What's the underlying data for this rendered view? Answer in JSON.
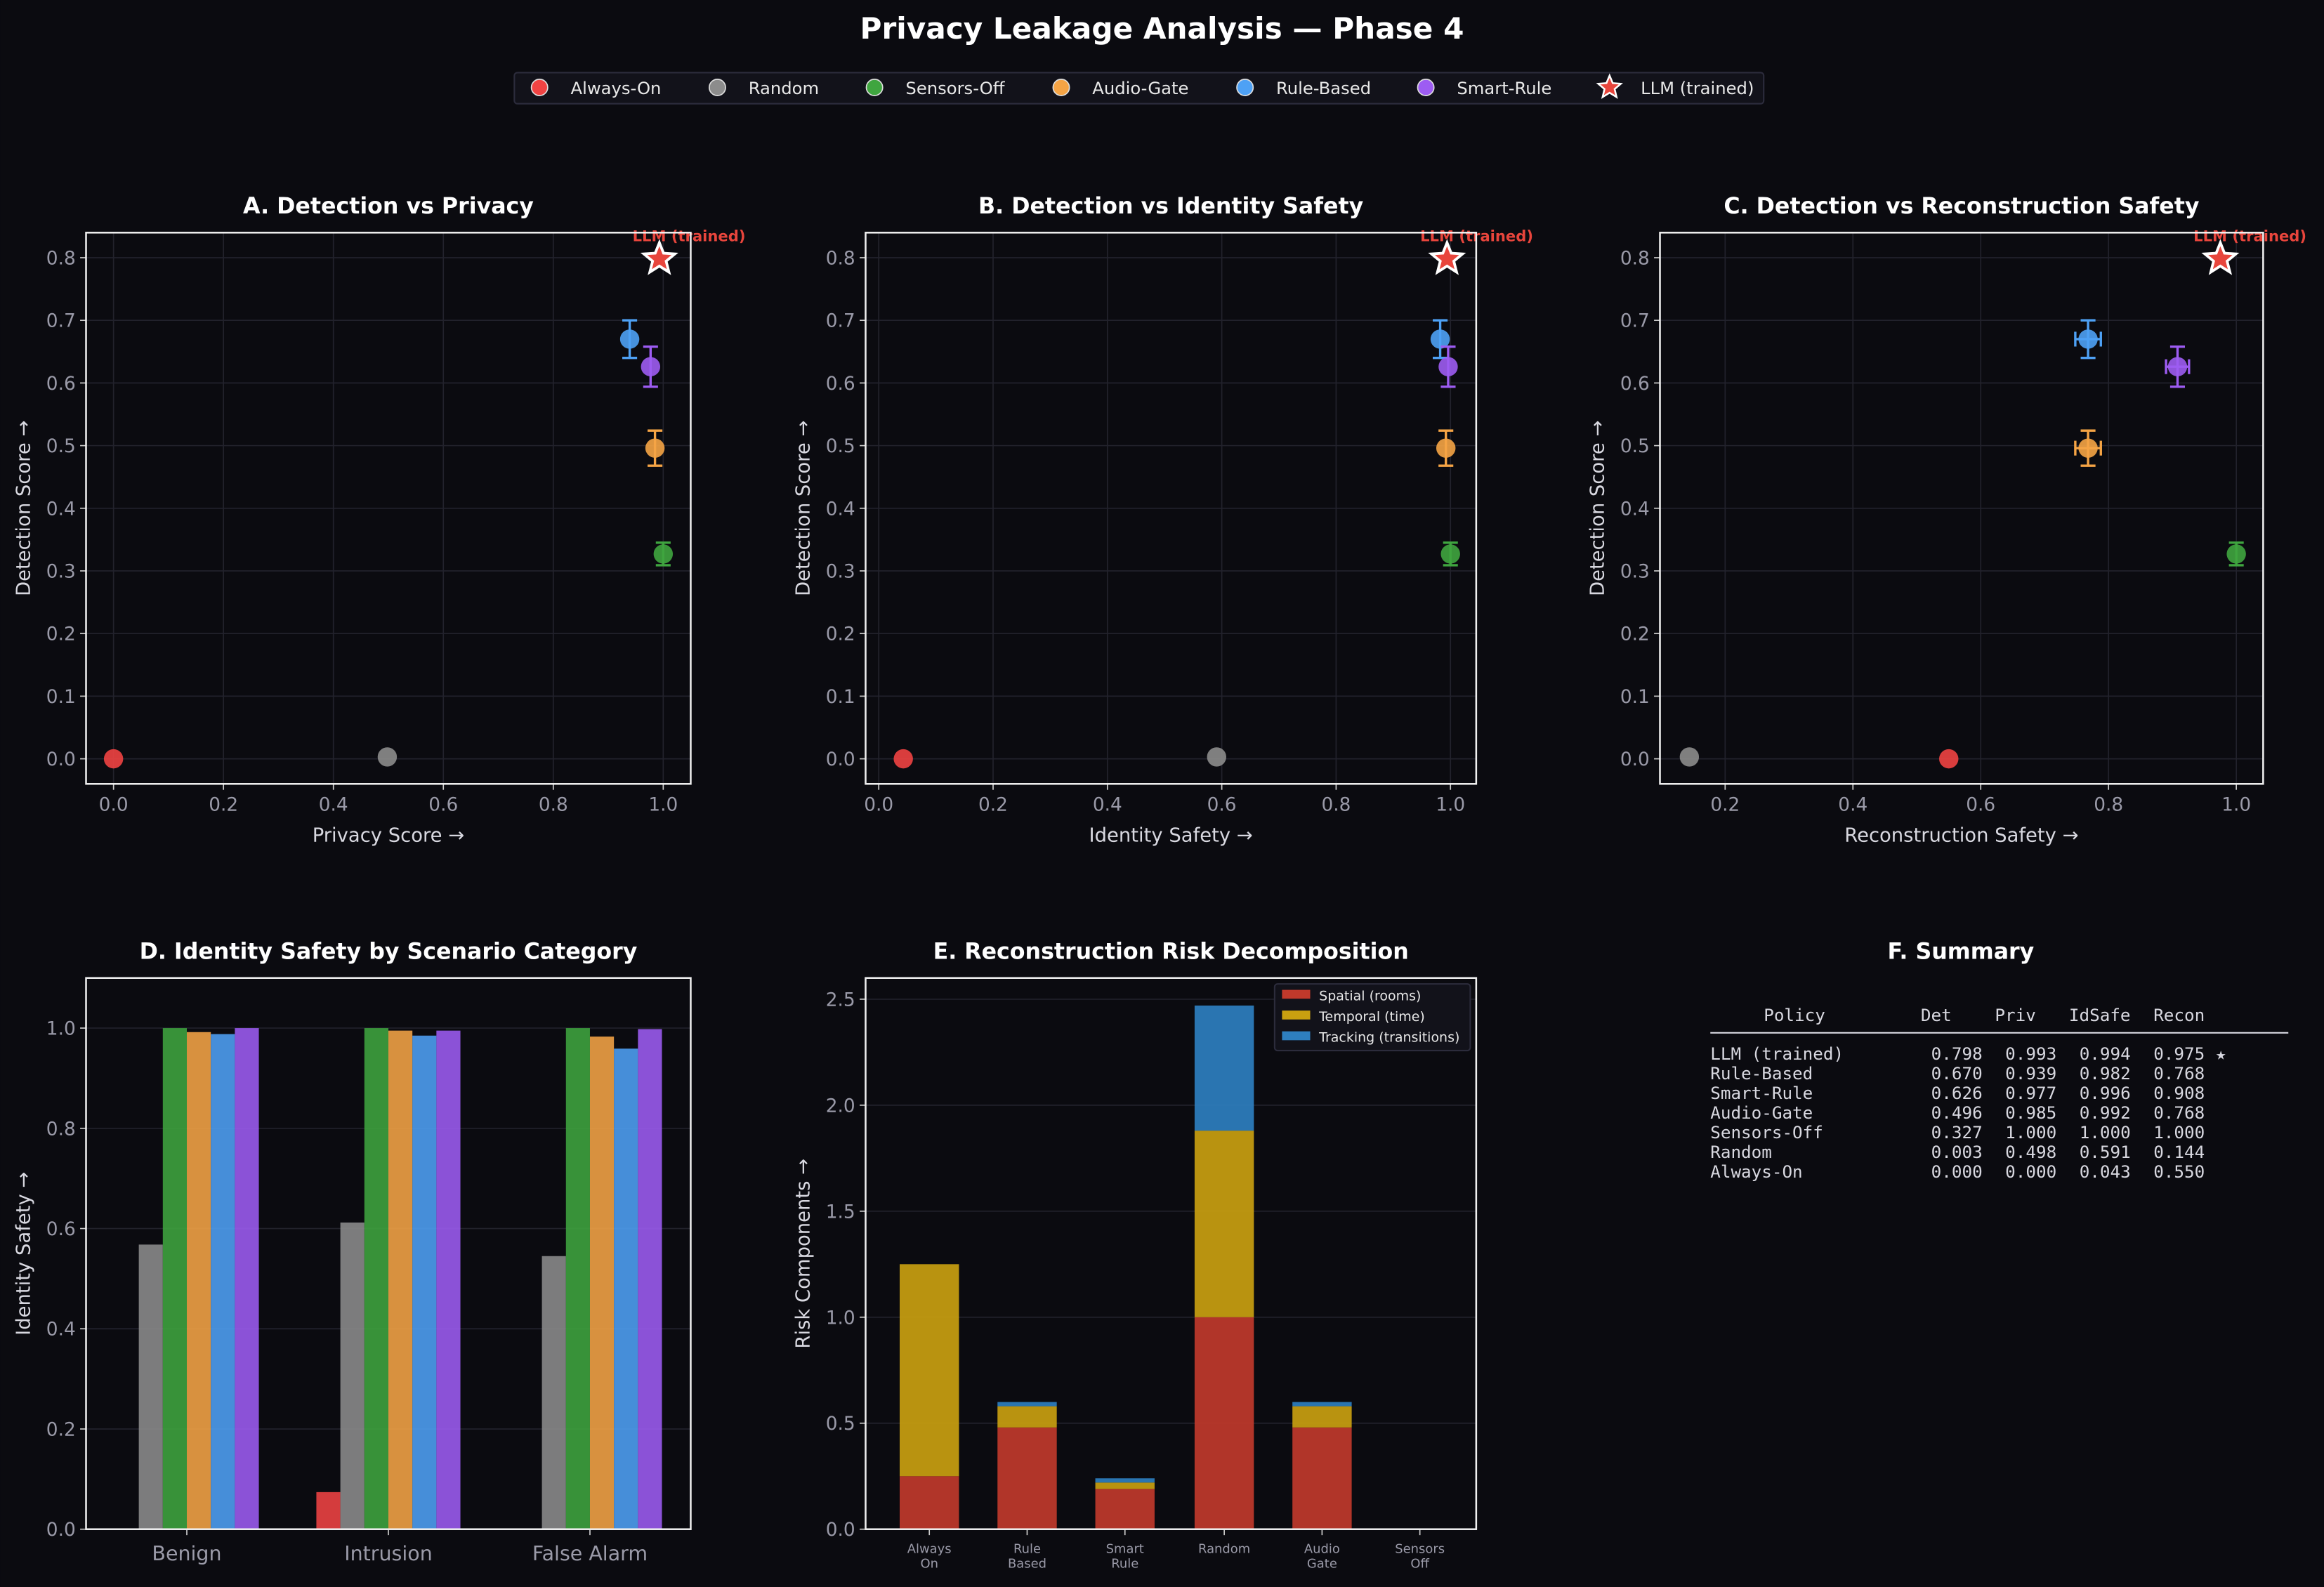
{
  "title": "Privacy Leakage Analysis — Phase 4",
  "legend": [
    {
      "name": "Always-On",
      "color": "#f04343",
      "marker": "circle"
    },
    {
      "name": "Random",
      "color": "#8c8c8c",
      "marker": "circle"
    },
    {
      "name": "Sensors-Off",
      "color": "#3fa53f",
      "marker": "circle"
    },
    {
      "name": "Audio-Gate",
      "color": "#f5a445",
      "marker": "circle"
    },
    {
      "name": "Rule-Based",
      "color": "#4ea1f5",
      "marker": "circle"
    },
    {
      "name": "Smart-Rule",
      "color": "#9d5cf2",
      "marker": "circle"
    },
    {
      "name": "LLM (trained)",
      "color": "#e8453c",
      "marker": "star"
    }
  ],
  "chart_data": [
    {
      "id": "A",
      "type": "scatter",
      "title": "A. Detection vs Privacy",
      "xlabel": "Privacy Score →",
      "ylabel": "Detection Score →",
      "xlim": [
        -0.05,
        1.05
      ],
      "ylim": [
        -0.04,
        0.84
      ],
      "xticks": [
        "0.0",
        "0.2",
        "0.4",
        "0.6",
        "0.8",
        "1.0"
      ],
      "yticks": [
        "0.0",
        "0.1",
        "0.2",
        "0.3",
        "0.4",
        "0.5",
        "0.6",
        "0.7",
        "0.8"
      ],
      "grid": true,
      "annotation": "LLM (trained)",
      "points": [
        {
          "series": "Always-On",
          "x": 0.0,
          "y": 0.0,
          "yerr": 0
        },
        {
          "series": "Random",
          "x": 0.498,
          "y": 0.003,
          "yerr": 0
        },
        {
          "series": "Sensors-Off",
          "x": 1.0,
          "y": 0.327,
          "yerr": 0.018
        },
        {
          "series": "Audio-Gate",
          "x": 0.985,
          "y": 0.496,
          "yerr": 0.028
        },
        {
          "series": "Rule-Based",
          "x": 0.939,
          "y": 0.67,
          "yerr": 0.03
        },
        {
          "series": "Smart-Rule",
          "x": 0.977,
          "y": 0.626,
          "yerr": 0.032
        },
        {
          "series": "LLM (trained)",
          "x": 0.993,
          "y": 0.798,
          "yerr": 0
        }
      ]
    },
    {
      "id": "B",
      "type": "scatter",
      "title": "B. Detection vs Identity Safety",
      "xlabel": "Identity Safety →",
      "ylabel": "Detection Score →",
      "xlim": [
        -0.023,
        1.045
      ],
      "ylim": [
        -0.04,
        0.84
      ],
      "xticks": [
        "0.0",
        "0.2",
        "0.4",
        "0.6",
        "0.8",
        "1.0"
      ],
      "yticks": [
        "0.0",
        "0.1",
        "0.2",
        "0.3",
        "0.4",
        "0.5",
        "0.6",
        "0.7",
        "0.8"
      ],
      "grid": true,
      "annotation": "LLM (trained)",
      "points": [
        {
          "series": "Always-On",
          "x": 0.043,
          "y": 0.0,
          "yerr": 0
        },
        {
          "series": "Random",
          "x": 0.591,
          "y": 0.003,
          "yerr": 0
        },
        {
          "series": "Sensors-Off",
          "x": 1.0,
          "y": 0.327,
          "yerr": 0.018
        },
        {
          "series": "Audio-Gate",
          "x": 0.992,
          "y": 0.496,
          "yerr": 0.028
        },
        {
          "series": "Rule-Based",
          "x": 0.982,
          "y": 0.67,
          "yerr": 0.03
        },
        {
          "series": "Smart-Rule",
          "x": 0.996,
          "y": 0.626,
          "yerr": 0.032
        },
        {
          "series": "LLM (trained)",
          "x": 0.994,
          "y": 0.798,
          "yerr": 0
        }
      ]
    },
    {
      "id": "C",
      "type": "scatter",
      "title": "C. Detection vs Reconstruction Safety",
      "xlabel": "Reconstruction Safety →",
      "ylabel": "Detection Score →",
      "xlim": [
        0.098,
        1.042
      ],
      "ylim": [
        -0.04,
        0.84
      ],
      "xticks": [
        "0.2",
        "0.4",
        "0.6",
        "0.8",
        "1.0"
      ],
      "yticks": [
        "0.0",
        "0.1",
        "0.2",
        "0.3",
        "0.4",
        "0.5",
        "0.6",
        "0.7",
        "0.8"
      ],
      "grid": true,
      "annotation": "LLM (trained)",
      "points": [
        {
          "series": "Always-On",
          "x": 0.55,
          "y": 0.0,
          "yerr": 0,
          "xerr": 0
        },
        {
          "series": "Random",
          "x": 0.144,
          "y": 0.003,
          "yerr": 0,
          "xerr": 0
        },
        {
          "series": "Sensors-Off",
          "x": 1.0,
          "y": 0.327,
          "yerr": 0.018,
          "xerr": 0
        },
        {
          "series": "Audio-Gate",
          "x": 0.768,
          "y": 0.496,
          "yerr": 0.028,
          "xerr": 0.02
        },
        {
          "series": "Rule-Based",
          "x": 0.768,
          "y": 0.67,
          "yerr": 0.03,
          "xerr": 0.02
        },
        {
          "series": "Smart-Rule",
          "x": 0.908,
          "y": 0.626,
          "yerr": 0.032,
          "xerr": 0.018
        },
        {
          "series": "LLM (trained)",
          "x": 0.975,
          "y": 0.798,
          "yerr": 0,
          "xerr": 0
        }
      ]
    },
    {
      "id": "D",
      "type": "bar",
      "title": "D. Identity Safety by Scenario Category",
      "xlabel": "",
      "ylabel": "Identity Safety →",
      "ylim": [
        0,
        1.1
      ],
      "yticks": [
        "0.0",
        "0.2",
        "0.4",
        "0.6",
        "0.8",
        "1.0"
      ],
      "categories": [
        "Benign",
        "Intrusion",
        "False Alarm"
      ],
      "series": [
        {
          "name": "Always-On",
          "values": [
            0.0,
            0.074,
            0.0
          ]
        },
        {
          "name": "Random",
          "values": [
            0.568,
            0.612,
            0.545
          ]
        },
        {
          "name": "Sensors-Off",
          "values": [
            1.0,
            1.0,
            1.0
          ]
        },
        {
          "name": "Audio-Gate",
          "values": [
            0.992,
            0.995,
            0.983
          ]
        },
        {
          "name": "Rule-Based",
          "values": [
            0.988,
            0.985,
            0.959
          ]
        },
        {
          "name": "Smart-Rule",
          "values": [
            1.0,
            0.995,
            0.998
          ]
        }
      ]
    },
    {
      "id": "E",
      "type": "bar",
      "stacked": true,
      "title": "E. Reconstruction Risk Decomposition",
      "xlabel": "",
      "ylabel": "Risk Components →",
      "ylim": [
        0,
        2.6
      ],
      "yticks": [
        "0.0",
        "0.5",
        "1.0",
        "1.5",
        "2.0",
        "2.5"
      ],
      "categories": [
        "Always\nOn",
        "Rule\nBased",
        "Smart\nRule",
        "Random",
        "Audio\nGate",
        "Sensors\nOff"
      ],
      "legend_position": "upper-right",
      "series": [
        {
          "name": "Spatial (rooms)",
          "color": "#c0392b",
          "values": [
            0.25,
            0.48,
            0.19,
            1.0,
            0.48,
            0.0
          ]
        },
        {
          "name": "Temporal (time)",
          "color": "#c9a010",
          "values": [
            1.0,
            0.1,
            0.03,
            0.88,
            0.1,
            0.0
          ]
        },
        {
          "name": "Tracking (transitions)",
          "color": "#2e7fbf",
          "values": [
            0.0,
            0.02,
            0.02,
            0.59,
            0.02,
            0.0
          ]
        }
      ]
    },
    {
      "id": "F",
      "type": "table",
      "title": "F. Summary",
      "columns": [
        "Policy",
        "Det",
        "Priv",
        "IdSafe",
        "Recon"
      ],
      "rows": [
        [
          "LLM (trained)",
          "0.798",
          "0.993",
          "0.994",
          "0.975",
          "★"
        ],
        [
          "Rule-Based",
          "0.670",
          "0.939",
          "0.982",
          "0.768",
          ""
        ],
        [
          "Smart-Rule",
          "0.626",
          "0.977",
          "0.996",
          "0.908",
          ""
        ],
        [
          "Audio-Gate",
          "0.496",
          "0.985",
          "0.992",
          "0.768",
          ""
        ],
        [
          "Sensors-Off",
          "0.327",
          "1.000",
          "1.000",
          "1.000",
          ""
        ],
        [
          "Random",
          "0.003",
          "0.498",
          "0.591",
          "0.144",
          ""
        ],
        [
          "Always-On",
          "0.000",
          "0.000",
          "0.043",
          "0.550",
          ""
        ]
      ]
    }
  ]
}
